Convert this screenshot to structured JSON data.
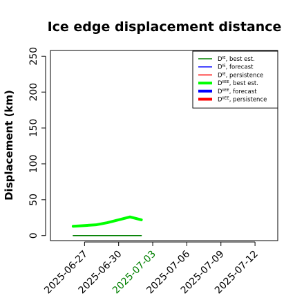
{
  "chart_data": {
    "type": "line",
    "title": "Ice edge displacement distance",
    "ylabel": "Displacement (km)",
    "xlabel": "",
    "ylim": [
      -7,
      258
    ],
    "xlim": [
      "2025-06-24",
      "2025-07-14"
    ],
    "grid": false,
    "legend_position": "top-right",
    "yticks": [
      0,
      50,
      100,
      150,
      200,
      250
    ],
    "xticks": [
      {
        "date": "2025-06-27",
        "label": "2025-06-27",
        "color": "#000000"
      },
      {
        "date": "2025-06-30",
        "label": "2025-06-30",
        "color": "#000000"
      },
      {
        "date": "2025-07-03",
        "label": "2025-07-03",
        "color": "#008000"
      },
      {
        "date": "2025-07-06",
        "label": "2025-07-06",
        "color": "#000000"
      },
      {
        "date": "2025-07-09",
        "label": "2025-07-09",
        "color": "#000000"
      },
      {
        "date": "2025-07-12",
        "label": "2025-07-12",
        "color": "#000000"
      }
    ],
    "legend": [
      {
        "base": "D",
        "sup": "IE",
        "text": ", best est.",
        "color": "#008000",
        "width": 1.5
      },
      {
        "base": "D",
        "sup": "IE",
        "text": ", forecast",
        "color": "#0000ff",
        "width": 1.5
      },
      {
        "base": "D",
        "sup": "IE",
        "text": ", persistence",
        "color": "#ff0000",
        "width": 1.5
      },
      {
        "base": "D",
        "sup": "IIEE",
        "text": ", best est.",
        "color": "#00ff00",
        "width": 4
      },
      {
        "base": "D",
        "sup": "IIEE",
        "text": ", forecast",
        "color": "#0000ff",
        "width": 4
      },
      {
        "base": "D",
        "sup": "IIEE",
        "text": ", persistence",
        "color": "#ff0000",
        "width": 4
      }
    ],
    "series": [
      {
        "legend_index": 0,
        "color": "#008000",
        "width": 1.5,
        "points": [
          {
            "x": "2025-06-26",
            "y": 0
          },
          {
            "x": "2025-06-27",
            "y": 0
          },
          {
            "x": "2025-06-28",
            "y": 0
          },
          {
            "x": "2025-06-29",
            "y": 0
          },
          {
            "x": "2025-06-30",
            "y": 0
          },
          {
            "x": "2025-07-01",
            "y": 0
          },
          {
            "x": "2025-07-02",
            "y": 0
          }
        ]
      },
      {
        "legend_index": 3,
        "color": "#00ff00",
        "width": 4,
        "points": [
          {
            "x": "2025-06-26",
            "y": 13
          },
          {
            "x": "2025-06-27",
            "y": 14
          },
          {
            "x": "2025-06-28",
            "y": 15
          },
          {
            "x": "2025-06-29",
            "y": 18
          },
          {
            "x": "2025-06-30",
            "y": 22
          },
          {
            "x": "2025-07-01",
            "y": 26
          },
          {
            "x": "2025-07-02",
            "y": 22
          }
        ]
      }
    ]
  }
}
